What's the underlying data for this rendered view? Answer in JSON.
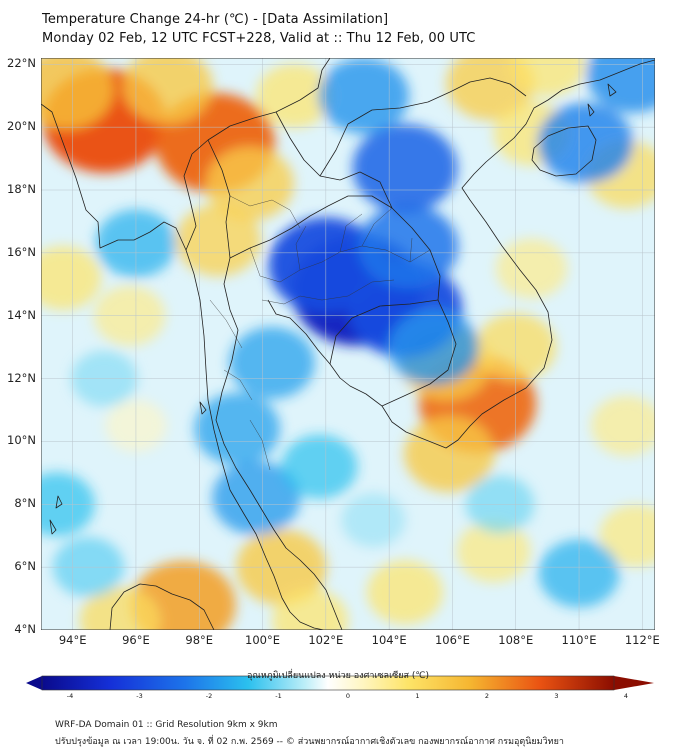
{
  "header": {
    "title_line1": "Temperature Change 24-hr (℃) - [Data Assimilation]",
    "title_line2": "Monday 02 Feb, 12 UTC FCST+228, Valid at :: Thu 12 Feb, 00 UTC"
  },
  "map": {
    "lat_labels": [
      "22°N",
      "20°N",
      "18°N",
      "16°N",
      "14°N",
      "12°N",
      "10°N",
      "8°N",
      "6°N",
      "4°N"
    ],
    "lon_labels": [
      "94°E",
      "96°E",
      "98°E",
      "100°E",
      "102°E",
      "104°E",
      "106°E",
      "108°E",
      "110°E",
      "112°E"
    ],
    "extent": {
      "lon_min": 93,
      "lon_max": 112.4,
      "lat_min": 4,
      "lat_max": 22.2
    },
    "field_blobs": [
      {
        "lon": 95.0,
        "lat": 20.2,
        "value": 3.0
      },
      {
        "lon": 98.5,
        "lat": 19.5,
        "value": 2.8
      },
      {
        "lon": 93.8,
        "lat": 21.2,
        "value": 1.8
      },
      {
        "lon": 97.0,
        "lat": 21.3,
        "value": 1.6
      },
      {
        "lon": 99.6,
        "lat": 18.2,
        "value": 1.5
      },
      {
        "lon": 98.6,
        "lat": 16.4,
        "value": 1.4
      },
      {
        "lon": 101.0,
        "lat": 21.0,
        "value": 1.0
      },
      {
        "lon": 107.2,
        "lat": 21.4,
        "value": 1.5
      },
      {
        "lon": 109.0,
        "lat": 22.0,
        "value": 1.0
      },
      {
        "lon": 108.5,
        "lat": 19.8,
        "value": 1.0
      },
      {
        "lon": 111.5,
        "lat": 18.5,
        "value": 1.2
      },
      {
        "lon": 106.8,
        "lat": 11.2,
        "value": 2.7
      },
      {
        "lon": 105.8,
        "lat": 12.5,
        "value": 1.6
      },
      {
        "lon": 105.9,
        "lat": 9.6,
        "value": 1.6
      },
      {
        "lon": 108.0,
        "lat": 13.0,
        "value": 1.2
      },
      {
        "lon": 108.5,
        "lat": 15.5,
        "value": 0.8
      },
      {
        "lon": 93.7,
        "lat": 15.2,
        "value": 1.0
      },
      {
        "lon": 95.8,
        "lat": 14.0,
        "value": 0.8
      },
      {
        "lon": 100.6,
        "lat": 6.0,
        "value": 1.6
      },
      {
        "lon": 97.5,
        "lat": 4.8,
        "value": 2.2
      },
      {
        "lon": 95.5,
        "lat": 4.3,
        "value": 1.2
      },
      {
        "lon": 101.5,
        "lat": 4.3,
        "value": 1.0
      },
      {
        "lon": 104.5,
        "lat": 5.2,
        "value": 1.0
      },
      {
        "lon": 107.3,
        "lat": 6.5,
        "value": 0.9
      },
      {
        "lon": 111.8,
        "lat": 7.0,
        "value": 0.9
      },
      {
        "lon": 111.5,
        "lat": 10.5,
        "value": 0.8
      },
      {
        "lon": 96.0,
        "lat": 10.5,
        "value": 0.4
      },
      {
        "lon": 103.0,
        "lat": 14.8,
        "value": -3.3
      },
      {
        "lon": 102.0,
        "lat": 15.6,
        "value": -2.6
      },
      {
        "lon": 104.5,
        "lat": 14.2,
        "value": -2.6
      },
      {
        "lon": 104.6,
        "lat": 16.2,
        "value": -2.0
      },
      {
        "lon": 104.5,
        "lat": 18.7,
        "value": -2.2
      },
      {
        "lon": 103.2,
        "lat": 21.0,
        "value": -1.6
      },
      {
        "lon": 110.2,
        "lat": 19.5,
        "value": -1.8
      },
      {
        "lon": 111.7,
        "lat": 21.7,
        "value": -1.7
      },
      {
        "lon": 105.4,
        "lat": 13.0,
        "value": -1.6
      },
      {
        "lon": 100.3,
        "lat": 12.5,
        "value": -1.4
      },
      {
        "lon": 99.2,
        "lat": 10.4,
        "value": -1.4
      },
      {
        "lon": 99.8,
        "lat": 8.2,
        "value": -1.5
      },
      {
        "lon": 101.8,
        "lat": 9.2,
        "value": -1.0
      },
      {
        "lon": 96.0,
        "lat": 16.3,
        "value": -1.2
      },
      {
        "lon": 93.5,
        "lat": 8.0,
        "value": -1.0
      },
      {
        "lon": 94.5,
        "lat": 6.0,
        "value": -0.8
      },
      {
        "lon": 110.0,
        "lat": 5.8,
        "value": -1.2
      },
      {
        "lon": 107.5,
        "lat": 8.0,
        "value": -0.7
      },
      {
        "lon": 103.5,
        "lat": 7.5,
        "value": -0.5
      },
      {
        "lon": 95.0,
        "lat": 12.0,
        "value": -0.6
      }
    ]
  },
  "colorbar": {
    "label": "อุณหภูมิเปลี่ยนแปลง หน่วย องศาเซลเซียส (℃)",
    "min": -4,
    "max": 4,
    "ticks": [
      "-4",
      "-3",
      "-2",
      "-1",
      "0",
      "1",
      "2",
      "3",
      "4"
    ]
  },
  "footer": {
    "line1": "WRF-DA Domain 01 :: Grid Resolution 9km x 9km",
    "line2": "ปรับปรุงข้อมูล ณ เวลา 19:00น. วัน จ. ที่ 02 ก.พ. 2569 -- © ส่วนพยากรณ์อากาศเชิงตัวเลข กองพยากรณ์อากาศ กรมอุตุนิยมวิทยา"
  }
}
